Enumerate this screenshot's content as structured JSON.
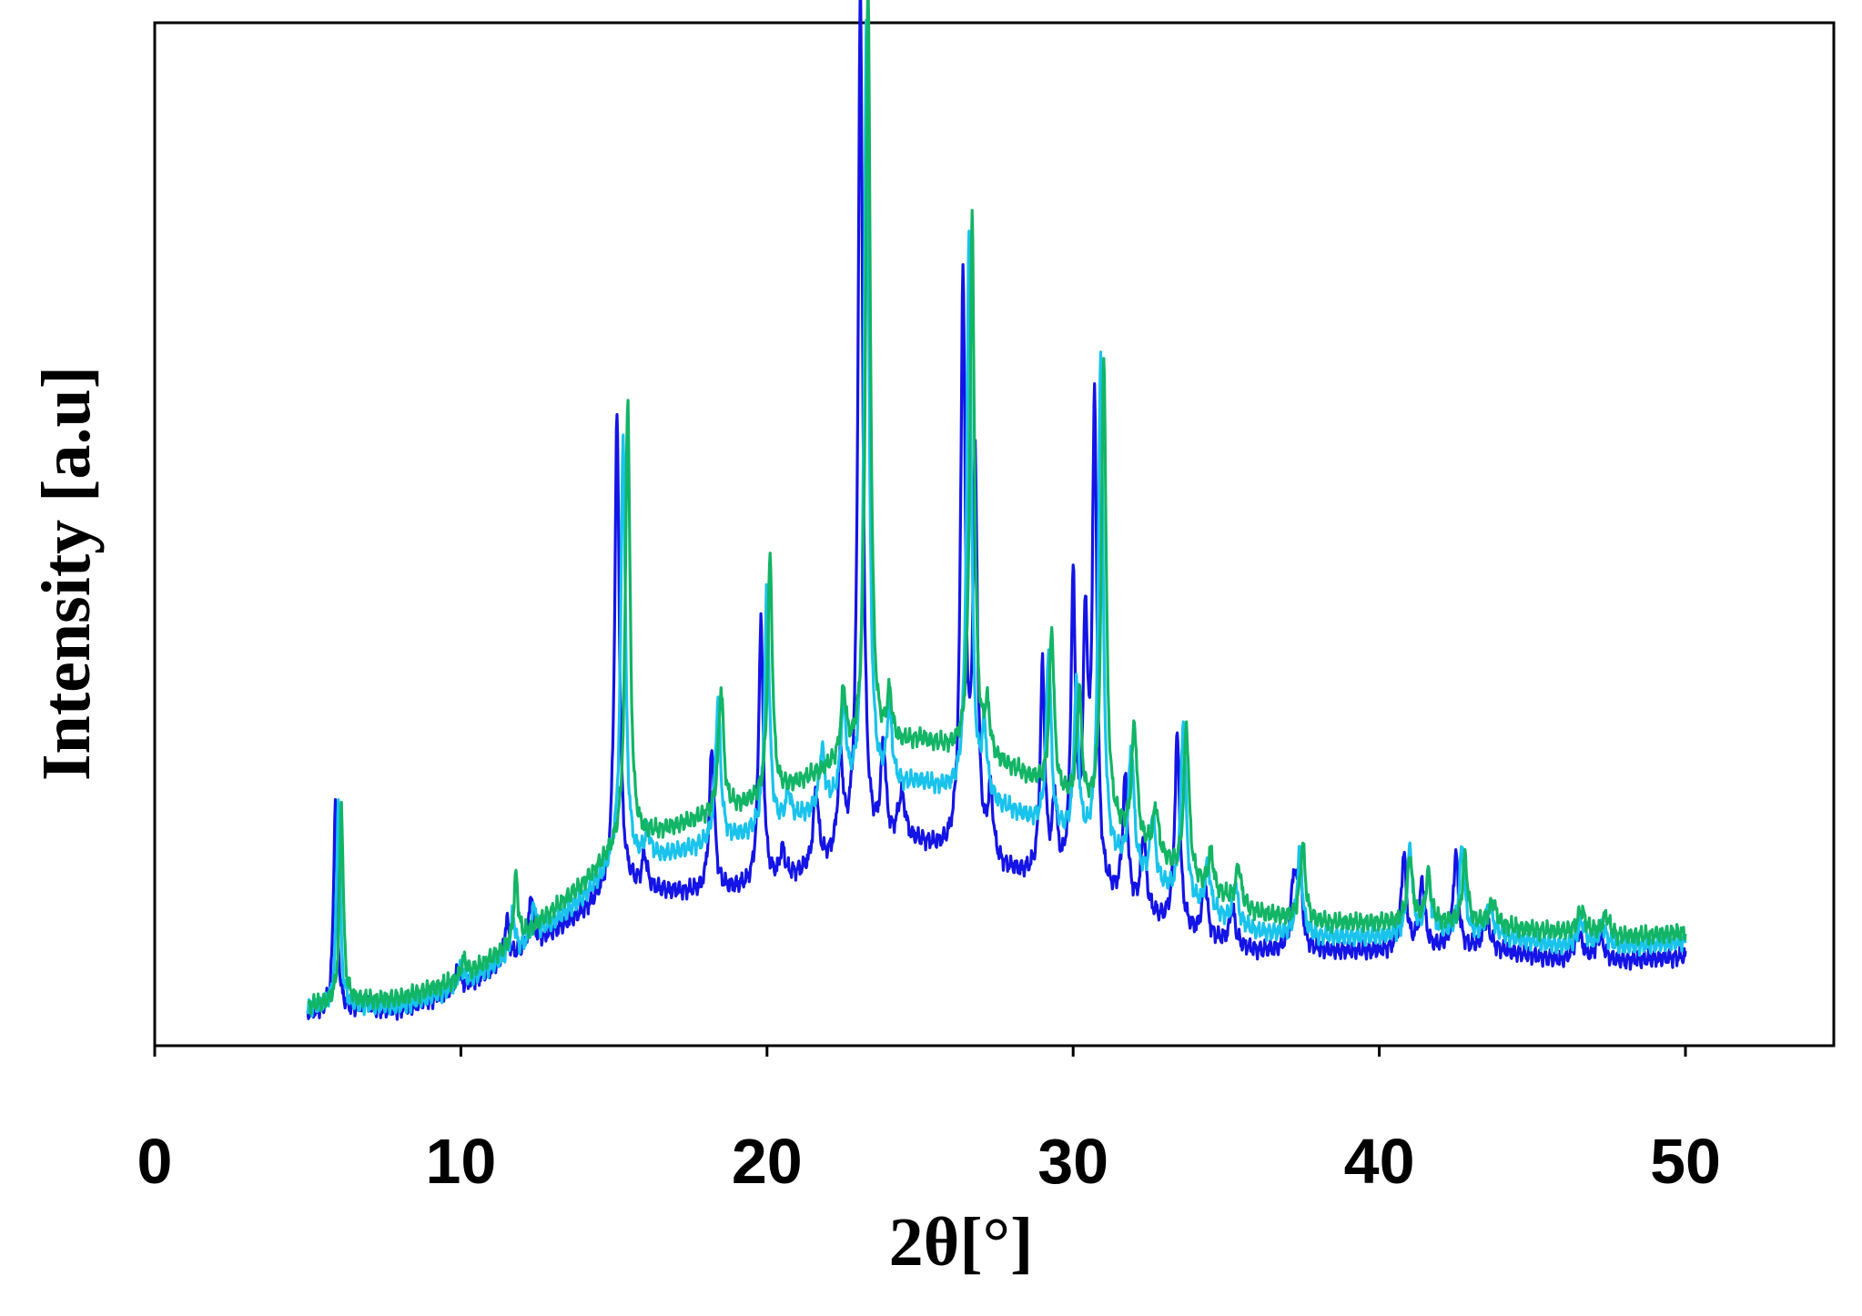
{
  "chart_data": {
    "type": "line",
    "title": "",
    "xlabel": "2θ[°]",
    "ylabel": "Intensity [a.u]",
    "xlim": [
      0,
      55
    ],
    "ylim": [
      0,
      100
    ],
    "xticks": [
      0,
      10,
      20,
      30,
      40,
      50
    ],
    "yticks": [],
    "grid": false,
    "legend": "none",
    "series": [
      {
        "color": "#1414e6",
        "baseline": [
          [
            5,
            2.0
          ],
          [
            6,
            2.4
          ],
          [
            8,
            2.4
          ],
          [
            10,
            4.5
          ],
          [
            12,
            8.5
          ],
          [
            14,
            12.5
          ],
          [
            15,
            15.5
          ],
          [
            16,
            14.8
          ],
          [
            18,
            14.5
          ],
          [
            20,
            15.2
          ],
          [
            22,
            17.5
          ],
          [
            23,
            18.5
          ],
          [
            25,
            19.5
          ],
          [
            26,
            18.5
          ],
          [
            28,
            16.5
          ],
          [
            30,
            15.0
          ],
          [
            32,
            12.5
          ],
          [
            34,
            10.0
          ],
          [
            36,
            8.5
          ],
          [
            38,
            8.5
          ],
          [
            40,
            8.5
          ],
          [
            42,
            8.8
          ],
          [
            44,
            8.5
          ],
          [
            46,
            7.5
          ],
          [
            48,
            7.5
          ],
          [
            50,
            8.0
          ]
        ],
        "peaks": [
          [
            5.9,
            22,
            0.07
          ],
          [
            6.9,
            1.2,
            0.08
          ],
          [
            9.9,
            2.0,
            0.12
          ],
          [
            11.5,
            4.5,
            0.08
          ],
          [
            12.3,
            5.5,
            0.08
          ],
          [
            15.1,
            49,
            0.09
          ],
          [
            16.0,
            3.5,
            0.1
          ],
          [
            18.2,
            15,
            0.1
          ],
          [
            19.8,
            28,
            0.09
          ],
          [
            20.5,
            3.0,
            0.1
          ],
          [
            21.6,
            8,
            0.1
          ],
          [
            22.4,
            10,
            0.1
          ],
          [
            23.05,
            90,
            0.09
          ],
          [
            23.8,
            10,
            0.1
          ],
          [
            24.4,
            5,
            0.15
          ],
          [
            26.4,
            60,
            0.09
          ],
          [
            26.8,
            40,
            0.09
          ],
          [
            27.3,
            7,
            0.1
          ],
          [
            29.0,
            22,
            0.09
          ],
          [
            29.4,
            8,
            0.09
          ],
          [
            30.0,
            31,
            0.09
          ],
          [
            30.4,
            26,
            0.09
          ],
          [
            30.7,
            50,
            0.09
          ],
          [
            31.7,
            13,
            0.1
          ],
          [
            32.3,
            8,
            0.1
          ],
          [
            33.4,
            20,
            0.1
          ],
          [
            34.3,
            6,
            0.1
          ],
          [
            35.2,
            4,
            0.1
          ],
          [
            37.2,
            7,
            0.1
          ],
          [
            37.4,
            8,
            0.1
          ],
          [
            40.8,
            10,
            0.1
          ],
          [
            41.4,
            7,
            0.1
          ],
          [
            42.5,
            10,
            0.1
          ],
          [
            43.5,
            3,
            0.15
          ],
          [
            46.5,
            3,
            0.15
          ],
          [
            47.2,
            2.5,
            0.15
          ]
        ]
      },
      {
        "color": "#19c3ec",
        "baseline": [
          [
            5,
            2.6
          ],
          [
            6,
            2.8
          ],
          [
            8,
            2.8
          ],
          [
            10,
            4.8
          ],
          [
            12,
            9.0
          ],
          [
            14,
            14.0
          ],
          [
            15,
            17.5
          ],
          [
            16,
            18.0
          ],
          [
            18,
            19.5
          ],
          [
            20,
            21.0
          ],
          [
            22,
            23.5
          ],
          [
            23,
            24.5
          ],
          [
            25,
            26.0
          ],
          [
            26,
            25.0
          ],
          [
            28,
            23.0
          ],
          [
            30,
            20.0
          ],
          [
            32,
            16.5
          ],
          [
            34,
            13.0
          ],
          [
            36,
            10.5
          ],
          [
            38,
            10.0
          ],
          [
            40,
            10.0
          ],
          [
            42,
            10.5
          ],
          [
            44,
            10.0
          ],
          [
            46,
            9.0
          ],
          [
            48,
            9.0
          ],
          [
            50,
            9.5
          ]
        ],
        "peaks": [
          [
            6.0,
            22,
            0.07
          ],
          [
            10.0,
            2.0,
            0.12
          ],
          [
            11.7,
            4.0,
            0.08
          ],
          [
            12.4,
            3.5,
            0.08
          ],
          [
            15.3,
            45,
            0.09
          ],
          [
            16.1,
            3.0,
            0.1
          ],
          [
            18.4,
            15,
            0.1
          ],
          [
            20.0,
            26,
            0.09
          ],
          [
            20.7,
            3.0,
            0.1
          ],
          [
            21.8,
            6,
            0.1
          ],
          [
            22.5,
            10,
            0.1
          ],
          [
            23.25,
            82,
            0.09
          ],
          [
            24.0,
            8,
            0.1
          ],
          [
            26.6,
            59,
            0.09
          ],
          [
            27.1,
            7,
            0.1
          ],
          [
            29.2,
            19,
            0.09
          ],
          [
            30.1,
            16,
            0.09
          ],
          [
            30.9,
            53,
            0.09
          ],
          [
            31.9,
            13,
            0.1
          ],
          [
            32.6,
            7,
            0.1
          ],
          [
            33.6,
            19,
            0.1
          ],
          [
            34.4,
            5,
            0.1
          ],
          [
            35.3,
            4,
            0.1
          ],
          [
            37.4,
            9,
            0.1
          ],
          [
            41.0,
            9,
            0.1
          ],
          [
            41.6,
            6,
            0.1
          ],
          [
            42.7,
            9,
            0.1
          ],
          [
            43.6,
            3,
            0.15
          ],
          [
            46.6,
            2.5,
            0.15
          ],
          [
            47.3,
            2,
            0.15
          ]
        ]
      },
      {
        "color": "#12b565",
        "baseline": [
          [
            5,
            2.8
          ],
          [
            6,
            3.2
          ],
          [
            8,
            3.6
          ],
          [
            10,
            5.5
          ],
          [
            12,
            10.0
          ],
          [
            14,
            15.5
          ],
          [
            15,
            19.0
          ],
          [
            16,
            20.5
          ],
          [
            18,
            22.5
          ],
          [
            20,
            24.5
          ],
          [
            22,
            27.5
          ],
          [
            23,
            29.0
          ],
          [
            25,
            30.5
          ],
          [
            26,
            29.5
          ],
          [
            28,
            27.5
          ],
          [
            30,
            24.0
          ],
          [
            32,
            20.0
          ],
          [
            34,
            15.5
          ],
          [
            36,
            12.5
          ],
          [
            38,
            11.5
          ],
          [
            40,
            11.5
          ],
          [
            42,
            11.5
          ],
          [
            44,
            11.0
          ],
          [
            46,
            10.5
          ],
          [
            48,
            10.0
          ],
          [
            50,
            10.5
          ]
        ],
        "peaks": [
          [
            6.1,
            21,
            0.07
          ],
          [
            10.1,
            2.0,
            0.12
          ],
          [
            11.8,
            7,
            0.08
          ],
          [
            15.45,
            47,
            0.09
          ],
          [
            18.5,
            13,
            0.1
          ],
          [
            20.1,
            25,
            0.09
          ],
          [
            22.5,
            7,
            0.1
          ],
          [
            23.3,
            80,
            0.09
          ],
          [
            24.0,
            5,
            0.1
          ],
          [
            26.7,
            56,
            0.09
          ],
          [
            27.2,
            5,
            0.1
          ],
          [
            29.3,
            17,
            0.09
          ],
          [
            30.2,
            12,
            0.09
          ],
          [
            31.0,
            49,
            0.09
          ],
          [
            32.0,
            12,
            0.1
          ],
          [
            32.7,
            5,
            0.1
          ],
          [
            33.7,
            16,
            0.1
          ],
          [
            34.5,
            4,
            0.1
          ],
          [
            35.4,
            4,
            0.1
          ],
          [
            37.5,
            8,
            0.1
          ],
          [
            41.0,
            7,
            0.1
          ],
          [
            41.6,
            5,
            0.1
          ],
          [
            42.8,
            7,
            0.1
          ],
          [
            43.7,
            2.5,
            0.15
          ],
          [
            46.6,
            2.5,
            0.15
          ],
          [
            47.4,
            2,
            0.15
          ]
        ]
      }
    ]
  }
}
